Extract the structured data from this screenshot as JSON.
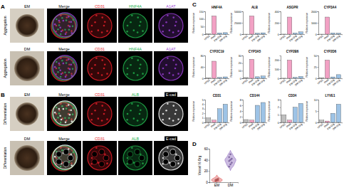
{
  "panels": {
    "A": {
      "label": "A",
      "rows": [
        {
          "condition": "EM",
          "stage": "Aggregation",
          "channels": [
            {
              "name": "Merge"
            },
            {
              "name": "CD31",
              "color": "#e8202a"
            },
            {
              "name": "HNF4A",
              "color": "#22b14c"
            },
            {
              "name": "A1AT",
              "color": "#9b3fd6"
            }
          ]
        },
        {
          "condition": "DM",
          "stage": "Aggregation",
          "channels": [
            {
              "name": "Merge"
            },
            {
              "name": "CD31",
              "color": "#e8202a"
            },
            {
              "name": "HNF4A",
              "color": "#22b14c"
            },
            {
              "name": "A1AT",
              "color": "#9b3fd6"
            }
          ]
        }
      ]
    },
    "B": {
      "label": "B",
      "rows": [
        {
          "condition": "EM",
          "stage": "Differentiation",
          "channels": [
            {
              "name": "Merge"
            },
            {
              "name": "CD31",
              "color": "#e8202a"
            },
            {
              "name": "ALB",
              "color": "#22b14c"
            },
            {
              "name": "E-cad",
              "color": "#ffffff"
            }
          ]
        },
        {
          "condition": "DM",
          "stage": "Differentiation",
          "channels": [
            {
              "name": "Merge"
            },
            {
              "name": "CD31",
              "color": "#e8202a"
            },
            {
              "name": "ALB",
              "color": "#22b14c"
            },
            {
              "name": "E-cad",
              "color": "#ffffff"
            }
          ]
        }
      ]
    },
    "C": {
      "label": "C"
    },
    "D": {
      "label": "D"
    }
  },
  "chart_data": [
    {
      "type": "bar",
      "title": "HNF4A",
      "y_label": "Relative expression",
      "categories": [
        "hPSC",
        "PHH",
        "EM-Org",
        "DM-Org"
      ],
      "values": [
        1,
        120,
        8,
        10
      ],
      "colors": [
        "#bfbfbf",
        "#f2a1c4",
        "#9dc3e6",
        "#9dc3e6"
      ],
      "ylim": [
        0,
        150
      ],
      "yticks": [
        0,
        50,
        100,
        150
      ]
    },
    {
      "type": "bar",
      "title": "ALB",
      "y_label": "Relative expression",
      "categories": [
        "hPSC",
        "PHH",
        "EM-Org",
        "DM-Org"
      ],
      "values": [
        1,
        40000,
        2000,
        3000
      ],
      "colors": [
        "#bfbfbf",
        "#f2a1c4",
        "#9dc3e6",
        "#9dc3e6"
      ],
      "ylim": [
        0,
        50000
      ],
      "yticks": [
        0,
        25000,
        50000
      ]
    },
    {
      "type": "bar",
      "title": "ASGPR",
      "y_label": "Relative expression",
      "categories": [
        "hPSC",
        "PHH",
        "EM-Org",
        "DM-Org"
      ],
      "values": [
        1,
        300,
        20,
        40
      ],
      "colors": [
        "#bfbfbf",
        "#f2a1c4",
        "#9dc3e6",
        "#9dc3e6"
      ],
      "ylim": [
        0,
        400
      ],
      "yticks": [
        0,
        200,
        400
      ]
    },
    {
      "type": "bar",
      "title": "CYP3A4",
      "y_label": "Relative expression",
      "categories": [
        "hPSC",
        "PHH",
        "EM-Org",
        "DM-Org"
      ],
      "values": [
        1,
        1500,
        100,
        80
      ],
      "colors": [
        "#bfbfbf",
        "#f2a1c4",
        "#9dc3e6",
        "#9dc3e6"
      ],
      "ylim": [
        0,
        2000
      ],
      "yticks": [
        0,
        1000,
        2000
      ]
    },
    {
      "type": "bar",
      "title": "CYP2C19",
      "y_label": "Relative expression",
      "categories": [
        "hPSC",
        "PHH",
        "EM-Org",
        "DM-Org"
      ],
      "values": [
        1,
        60,
        3,
        5
      ],
      "colors": [
        "#bfbfbf",
        "#f2a1c4",
        "#9dc3e6",
        "#9dc3e6"
      ],
      "ylim": [
        0,
        80
      ],
      "yticks": [
        0,
        40,
        80
      ]
    },
    {
      "type": "bar",
      "title": "CYP3A5",
      "y_label": "Relative expression",
      "categories": [
        "hPSC",
        "PHH",
        "EM-Org",
        "DM-Org"
      ],
      "values": [
        1,
        25,
        2,
        3
      ],
      "colors": [
        "#bfbfbf",
        "#f2a1c4",
        "#9dc3e6",
        "#9dc3e6"
      ],
      "ylim": [
        0,
        30
      ],
      "yticks": [
        0,
        10,
        20,
        30
      ]
    },
    {
      "type": "bar",
      "title": "CYP2B6",
      "y_label": "Relative expression",
      "categories": [
        "hPSC",
        "PHH",
        "EM-Org",
        "DM-Org"
      ],
      "values": [
        1,
        200,
        10,
        20
      ],
      "colors": [
        "#bfbfbf",
        "#f2a1c4",
        "#9dc3e6",
        "#9dc3e6"
      ],
      "ylim": [
        0,
        250
      ],
      "yticks": [
        0,
        100,
        200
      ]
    },
    {
      "type": "bar",
      "title": "CYP2D6",
      "y_label": "Relative expression",
      "categories": [
        "hPSC",
        "PHH",
        "EM-Org",
        "DM-Org"
      ],
      "values": [
        1,
        40,
        3,
        8
      ],
      "colors": [
        "#bfbfbf",
        "#f2a1c4",
        "#9dc3e6",
        "#9dc3e6"
      ],
      "ylim": [
        0,
        50
      ],
      "yticks": [
        0,
        25,
        50
      ]
    },
    {
      "type": "bar",
      "title": "CD31",
      "y_label": "Relative expression",
      "categories": [
        "hPSC",
        "PHH",
        "EM-Org",
        "DM-Org"
      ],
      "values": [
        1,
        0.5,
        3,
        4
      ],
      "colors": [
        "#bfbfbf",
        "#f2a1c4",
        "#9dc3e6",
        "#9dc3e6"
      ],
      "ylim": [
        0,
        5
      ],
      "yticks": [
        0,
        1,
        2,
        3,
        4,
        5
      ]
    },
    {
      "type": "bar",
      "title": "CD144",
      "y_label": "Relative expression",
      "categories": [
        "hPSC",
        "PHH",
        "EM-Org",
        "DM-Org"
      ],
      "values": [
        1,
        0.8,
        6,
        7
      ],
      "colors": [
        "#bfbfbf",
        "#f2a1c4",
        "#9dc3e6",
        "#9dc3e6"
      ],
      "ylim": [
        0,
        8
      ],
      "yticks": [
        0,
        2,
        4,
        6,
        8
      ]
    },
    {
      "type": "bar",
      "title": "CD34",
      "y_label": "Relative expression",
      "categories": [
        "hPSC",
        "PHH",
        "EM-Org",
        "DM-Org"
      ],
      "values": [
        1,
        0.3,
        2,
        2.5
      ],
      "colors": [
        "#bfbfbf",
        "#f2a1c4",
        "#9dc3e6",
        "#9dc3e6"
      ],
      "ylim": [
        0,
        3
      ],
      "yticks": [
        0,
        1,
        2,
        3
      ]
    },
    {
      "type": "bar",
      "title": "LYVE1",
      "y_label": "Relative expression",
      "categories": [
        "hPSC",
        "PHH",
        "EM-Org",
        "DM-Org"
      ],
      "values": [
        1,
        0.6,
        4,
        8
      ],
      "colors": [
        "#bfbfbf",
        "#f2a1c4",
        "#9dc3e6",
        "#9dc3e6"
      ],
      "ylim": [
        0,
        10
      ],
      "yticks": [
        0,
        5,
        10
      ]
    },
    {
      "type": "violin",
      "y_label": "Vessel % Org",
      "categories": [
        "EM",
        "DM"
      ],
      "values": [
        [
          2,
          3,
          3.5,
          4,
          5,
          6
        ],
        [
          28,
          32,
          35,
          38,
          40,
          42,
          45,
          50
        ]
      ],
      "colors": [
        "#e05a5a",
        "#8e6bbf"
      ],
      "ylim": [
        0,
        60
      ],
      "yticks": [
        0,
        20,
        40,
        60
      ]
    }
  ]
}
